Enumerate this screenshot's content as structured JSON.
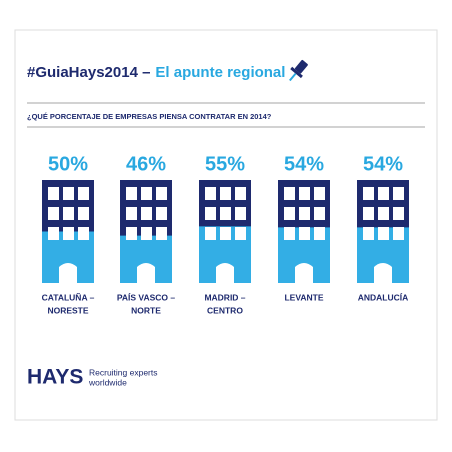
{
  "chart_data": {
    "type": "pictorial",
    "title": "#GuiaHays2014 –",
    "title_accent": "El apunte regional",
    "subtitle": "¿QUÉ PORCENTAJE DE EMPRESAS PIENSA CONTRATAR EN 2014?",
    "categories": [
      [
        "CATALUÑA –",
        "NORESTE"
      ],
      [
        "PAÍS VASCO –",
        "NORTE"
      ],
      [
        "MADRID –",
        "CENTRO"
      ],
      [
        "LEVANTE"
      ],
      [
        "ANDALUCÍA"
      ]
    ],
    "values": [
      50,
      46,
      55,
      54,
      54
    ],
    "value_labels": [
      "50%",
      "46%",
      "55%",
      "54%",
      "54%"
    ],
    "ylim": [
      0,
      100
    ],
    "color": "#33aee5",
    "empty_color": "#1e2a6e",
    "logo": "HAYS",
    "tagline": [
      "Recruiting experts",
      "worldwide"
    ]
  }
}
